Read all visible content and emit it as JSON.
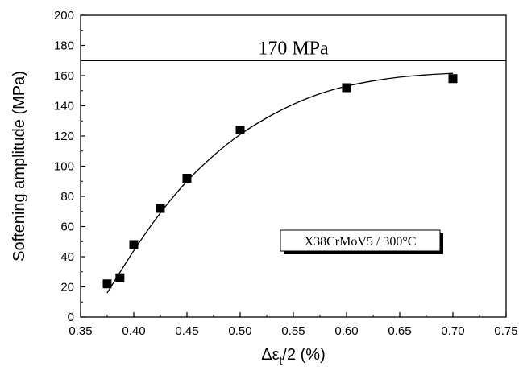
{
  "chart_data": {
    "type": "scatter",
    "xlabel": {
      "prefix": "Δε",
      "subscript": "t",
      "suffix": "/2 (%)"
    },
    "ylabel": "Softening amplitude (MPa)",
    "xlim": [
      0.35,
      0.75
    ],
    "ylim": [
      0,
      200
    ],
    "x_ticks": [
      0.35,
      0.4,
      0.45,
      0.5,
      0.55,
      0.6,
      0.65,
      0.7,
      0.75
    ],
    "x_tick_labels": [
      "0.35",
      "0.40",
      "0.45",
      "0.50",
      "0.55",
      "0.60",
      "0.65",
      "0.70",
      "0.75"
    ],
    "y_ticks": [
      0,
      20,
      40,
      60,
      80,
      100,
      120,
      140,
      160,
      180,
      200
    ],
    "y_tick_labels": [
      "0",
      "20",
      "40",
      "60",
      "80",
      "100",
      "120",
      "140",
      "160",
      "180",
      "200"
    ],
    "grid": false,
    "points": [
      {
        "x": 0.375,
        "y": 22
      },
      {
        "x": 0.387,
        "y": 26
      },
      {
        "x": 0.4,
        "y": 48
      },
      {
        "x": 0.425,
        "y": 72
      },
      {
        "x": 0.45,
        "y": 92
      },
      {
        "x": 0.5,
        "y": 124
      },
      {
        "x": 0.6,
        "y": 152
      },
      {
        "x": 0.7,
        "y": 158
      }
    ],
    "fit_curve": [
      {
        "x": 0.375,
        "y": 16
      },
      {
        "x": 0.4,
        "y": 44
      },
      {
        "x": 0.425,
        "y": 69
      },
      {
        "x": 0.45,
        "y": 90
      },
      {
        "x": 0.475,
        "y": 107
      },
      {
        "x": 0.5,
        "y": 121
      },
      {
        "x": 0.525,
        "y": 132
      },
      {
        "x": 0.55,
        "y": 141
      },
      {
        "x": 0.575,
        "y": 148
      },
      {
        "x": 0.6,
        "y": 153
      },
      {
        "x": 0.625,
        "y": 156.5
      },
      {
        "x": 0.65,
        "y": 159
      },
      {
        "x": 0.675,
        "y": 160.5
      },
      {
        "x": 0.7,
        "y": 161.5
      }
    ],
    "reference_line": {
      "y": 170,
      "label": "170 MPa"
    },
    "annotation": "X38CrMoV5 / 300°C"
  }
}
